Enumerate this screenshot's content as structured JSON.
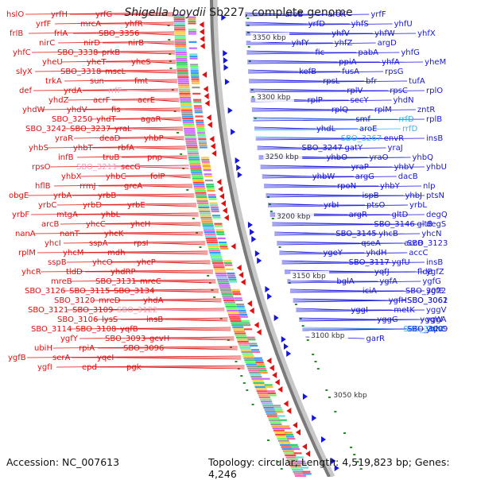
{
  "title": {
    "organism": "Shigella boydii",
    "rest": " Sb227, complete genome"
  },
  "footer": {
    "accession": "Accession: NC_007613",
    "summary": "Topology: circular; Length: 4,519,823 bp; Genes: 4,246"
  },
  "colors": {
    "left_genes": "#e01010",
    "right_genes": "#1515e0",
    "pseudo_left": "#e9a0c0",
    "pseudo_right": "#30b8e8",
    "axis": "#888888"
  },
  "kbp_labels": [
    "3350 kbp",
    "3300 kbp",
    "3250 kbp",
    "3200 kbp",
    "3150 kbp",
    "3100 kbp",
    "3050 kbp"
  ],
  "left_labels": [
    "hslO",
    "yrfH",
    "yrfG",
    "yrfF",
    "mrcA",
    "yhfR",
    "frlB",
    "frlA",
    "SBO_3356",
    "nirC",
    "nirD",
    "nirB",
    "yhfC",
    "SBO_3338",
    "prkB",
    "yheU",
    "yheT",
    "yheS",
    "slyX",
    "SBO_3318",
    "mscL",
    "trkA",
    "sun",
    "fmt",
    "def",
    "yrdA",
    "rrfF",
    "yhdZ",
    "acrF",
    "acrE",
    "yhdW",
    "yhdV",
    "fis",
    "SBO_3250",
    "yhdT",
    "agaR",
    "SBO_3242",
    "SBO_3237",
    "yraL",
    "yraR",
    "deaD",
    "yhbP",
    "yhbS",
    "yhbT",
    "rbfA",
    "infB",
    "truB",
    "pnp",
    "rpsO",
    "SBO_3211",
    "secG",
    "yhbX",
    "yhbC",
    "folP",
    "hflB",
    "rrmJ",
    "greA",
    "obgE",
    "yrbA",
    "yrbB",
    "yrbC",
    "yrbD",
    "yrbE",
    "yrbF",
    "mtgA",
    "yhbL",
    "arcB",
    "yhcC",
    "yhcH",
    "nanA",
    "nanT",
    "yhcK",
    "yhcI",
    "sspA",
    "rpsI",
    "rplM",
    "yhcM",
    "mdh",
    "sspB",
    "yhcO",
    "yhcP",
    "yhcR",
    "tldD",
    "yhdRP",
    "mreB",
    "SBO_3131",
    "mreC",
    "SBO_3126",
    "SBO_3115",
    "SBO_3134",
    "SBO_3120",
    "mreD",
    "yhdA",
    "SBO_3121",
    "SBO_3109",
    "SBO_3122",
    "SBO_3106",
    "lysS",
    "insB",
    "SBO_3114",
    "SBO_3108",
    "yqfB",
    "ygfY",
    "SBO_3093",
    "gcvH",
    "ubiH",
    "rpiA",
    "SBO_3096",
    "ygfB",
    "serA",
    "yqeI",
    "ygfI",
    "epd",
    "pgk"
  ],
  "right_labels": [
    "aroB",
    "aroK",
    "yrfF",
    "yrfD",
    "yhfS",
    "yhfU",
    "yhfV",
    "yhfW",
    "yhfX",
    "yhfY",
    "yhfZ",
    "argD",
    "fic",
    "pabA",
    "yhfG",
    "ppiA",
    "yhfA",
    "yheM",
    "kefB",
    "fusA",
    "rpsG",
    "rpsL",
    "bfr",
    "tufA",
    "rplV",
    "rpsC",
    "rplO",
    "rplP",
    "secY",
    "yhdN",
    "rplQ",
    "rplM",
    "zntR",
    "smf",
    "rrfD",
    "rplB",
    "yhdL",
    "aroE",
    "rrfD",
    "SBO_3267",
    "envR",
    "insB",
    "SBO_3247",
    "gatY",
    "yraJ",
    "yhbO",
    "yraO",
    "yhbQ",
    "yraP",
    "yhbV",
    "yhbU",
    "yhbW",
    "argG",
    "dacB",
    "rpoN",
    "yhbY",
    "nlp",
    "ispB",
    "yhbJ",
    "ptsN",
    "yrbI",
    "ptsO",
    "yrbL",
    "argR",
    "gltD",
    "degQ",
    "SBO_3146",
    "gltB",
    "degS",
    "SBO_3145",
    "yhcB",
    "yhcN",
    "qseA",
    "accB",
    "SBO_3123",
    "ygeY",
    "yhdH",
    "accC",
    "SBO_3117",
    "ygfU",
    "insB",
    "yqfJ",
    "fldB",
    "ygfZ",
    "bglA",
    "ygfA",
    "ygfG",
    "iciA",
    "SBO_3072",
    "ygfE",
    "ygfH",
    "SBO_3062",
    "SBO_3061",
    "yggI",
    "metK",
    "yggV",
    "yggG",
    "yggW",
    "yggA",
    "SBO_3022",
    "yqhC",
    "SBO_3009",
    "garR"
  ]
}
